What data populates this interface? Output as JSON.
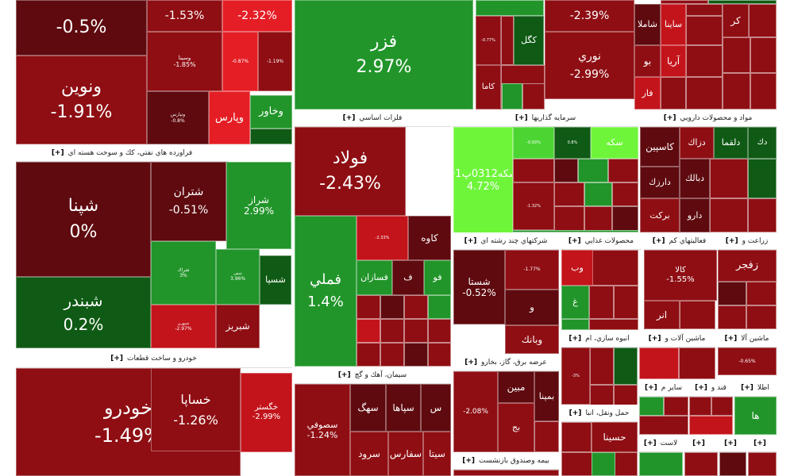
{
  "colors": {
    "dark_red": "#5e0a0f",
    "red": "#8e0e13",
    "bright_red": "#c3141b",
    "light_red": "#e51e25",
    "dark_green": "#0f5a14",
    "green": "#21952a",
    "light_green": "#4cd433",
    "lime": "#6ef53a",
    "header_bg": "#ffffff",
    "border": "#ffffff"
  },
  "chart_data": {
    "type": "treemap",
    "value_unit": "% change",
    "groups": [
      {
        "name": "فراورده هاي نفتي، كك و سوخت هسته اي",
        "expand_label": "[+]"
      },
      {
        "name": "خودرو و ساخت قطعات",
        "expand_label": "[+]"
      },
      {
        "name": "فلزات اساسي",
        "expand_label": "[+]"
      },
      {
        "name": "سيمان، آهك و گچ",
        "expand_label": "[+]"
      },
      {
        "name": "سرمايه گذاريها",
        "expand_label": "[+]"
      },
      {
        "name": "مواد و محصولات دارويي",
        "expand_label": "[+]"
      },
      {
        "name": "شركتهاي چند رشته اي",
        "expand_label": "[+]"
      },
      {
        "name": "محصولات غذايي",
        "expand_label": "[+]"
      },
      {
        "name": "فعاليتهاي كم",
        "expand_label": "[+]"
      },
      {
        "name": "زراعت و",
        "expand_label": "[+]"
      },
      {
        "name": "عرضه برق، گاز، بخارو",
        "expand_label": "[+]"
      },
      {
        "name": "انبوه سازي، ام",
        "expand_label": "[+]"
      },
      {
        "name": "ماشين آلات و",
        "expand_label": "[+]"
      },
      {
        "name": "ماشين آلا",
        "expand_label": "[+]"
      },
      {
        "name": "حمل ونقل، انبا",
        "expand_label": "[+]"
      },
      {
        "name": "ساير م",
        "expand_label": "[+]"
      },
      {
        "name": "قند و",
        "expand_label": "[+]"
      },
      {
        "name": "اطلا",
        "expand_label": "[+]"
      },
      {
        "name": "بيمه وصندوق بازنشست",
        "expand_label": "[+]"
      },
      {
        "name": "لاست",
        "expand_label": "[+]"
      },
      {
        "name": "",
        "expand_label": "[+]"
      },
      {
        "name": "",
        "expand_label": "[+]"
      },
      {
        "name": "",
        "expand_label": "[+]"
      }
    ],
    "tiles": [
      {
        "name": "",
        "change": "-0.5%"
      },
      {
        "name": "",
        "change": "-1.53%"
      },
      {
        "name": "",
        "change": "-2.32%"
      },
      {
        "name": "ونوين",
        "change": "-1.91%"
      },
      {
        "name": "وسينا",
        "change": "-1.85%"
      },
      {
        "name": "",
        "change": "-0.87%"
      },
      {
        "name": "",
        "change": "-1.19%"
      },
      {
        "name": "ونپارس",
        "change": "-0.8%"
      },
      {
        "name": "وپارس",
        "change": ""
      },
      {
        "name": "وخاور",
        "change": ""
      },
      {
        "name": "فزر",
        "change": "2.97%"
      },
      {
        "name": "",
        "change": "-2.39%"
      },
      {
        "name": "",
        "change": "-0.77%"
      },
      {
        "name": "كگل",
        "change": ""
      },
      {
        "name": "كاما",
        "change": ""
      },
      {
        "name": "نوري",
        "change": "-2.99%"
      },
      {
        "name": "شاملا",
        "change": ""
      },
      {
        "name": "ساينا",
        "change": ""
      },
      {
        "name": "كر",
        "change": ""
      },
      {
        "name": "آريا",
        "change": ""
      },
      {
        "name": "بو",
        "change": ""
      },
      {
        "name": "فار",
        "change": ""
      },
      {
        "name": "شپنا",
        "change": "0%"
      },
      {
        "name": "شتران",
        "change": "-0.51%"
      },
      {
        "name": "شراز",
        "change": "2.99%"
      },
      {
        "name": "شراك",
        "change": "3%"
      },
      {
        "name": "شفن",
        "change": "3.96%"
      },
      {
        "name": "شسپا",
        "change": ""
      },
      {
        "name": "شبندر",
        "change": "0.2%"
      },
      {
        "name": "شبهرن",
        "change": "-2.97%"
      },
      {
        "name": "شبريز",
        "change": ""
      },
      {
        "name": "خودرو",
        "change": "-1.49%"
      },
      {
        "name": "خساپا",
        "change": "-1.26%"
      },
      {
        "name": "خگستر",
        "change": "-2.99%"
      },
      {
        "name": "فولاد",
        "change": "-2.43%"
      },
      {
        "name": "فملي",
        "change": "1.4%"
      },
      {
        "name": "",
        "change": "-2.33%"
      },
      {
        "name": "كاوه",
        "change": ""
      },
      {
        "name": "فسازان",
        "change": ""
      },
      {
        "name": "ف",
        "change": ""
      },
      {
        "name": "فو",
        "change": ""
      },
      {
        "name": "سكه0312پ01",
        "change": "4.72%"
      },
      {
        "name": "",
        "change": "-0.93%"
      },
      {
        "name": "",
        "change": "0.8%"
      },
      {
        "name": "سكه",
        "change": ""
      },
      {
        "name": "",
        "change": "-1.32%"
      },
      {
        "name": "دك",
        "change": ""
      },
      {
        "name": "دلقما",
        "change": ""
      },
      {
        "name": "دزاك",
        "change": ""
      },
      {
        "name": "كاسپين",
        "change": ""
      },
      {
        "name": "دبالك",
        "change": ""
      },
      {
        "name": "دارزك",
        "change": ""
      },
      {
        "name": "دارو",
        "change": ""
      },
      {
        "name": "بركت",
        "change": ""
      },
      {
        "name": "شستا",
        "change": "-0.52%"
      },
      {
        "name": "",
        "change": "-1.77%"
      },
      {
        "name": "و",
        "change": ""
      },
      {
        "name": "وبانك",
        "change": ""
      },
      {
        "name": "وب",
        "change": ""
      },
      {
        "name": "غ",
        "change": ""
      },
      {
        "name": "كالا",
        "change": "-1.55%"
      },
      {
        "name": "انر",
        "change": ""
      },
      {
        "name": "زفجر",
        "change": ""
      },
      {
        "name": "",
        "change": "-0.65%"
      },
      {
        "name": "مبين",
        "change": ""
      },
      {
        "name": "بمپنا",
        "change": ""
      },
      {
        "name": "",
        "change": "-2.08%"
      },
      {
        "name": "بج",
        "change": ""
      },
      {
        "name": "",
        "change": "-3%"
      },
      {
        "name": "حسينا",
        "change": ""
      },
      {
        "name": "ها",
        "change": ""
      },
      {
        "name": "سصوفي",
        "change": "-1.24%"
      },
      {
        "name": "سهگ",
        "change": ""
      },
      {
        "name": "سپاها",
        "change": ""
      },
      {
        "name": "س",
        "change": ""
      },
      {
        "name": "سرود",
        "change": ""
      },
      {
        "name": "سفارس",
        "change": ""
      },
      {
        "name": "سيتا",
        "change": ""
      }
    ]
  }
}
